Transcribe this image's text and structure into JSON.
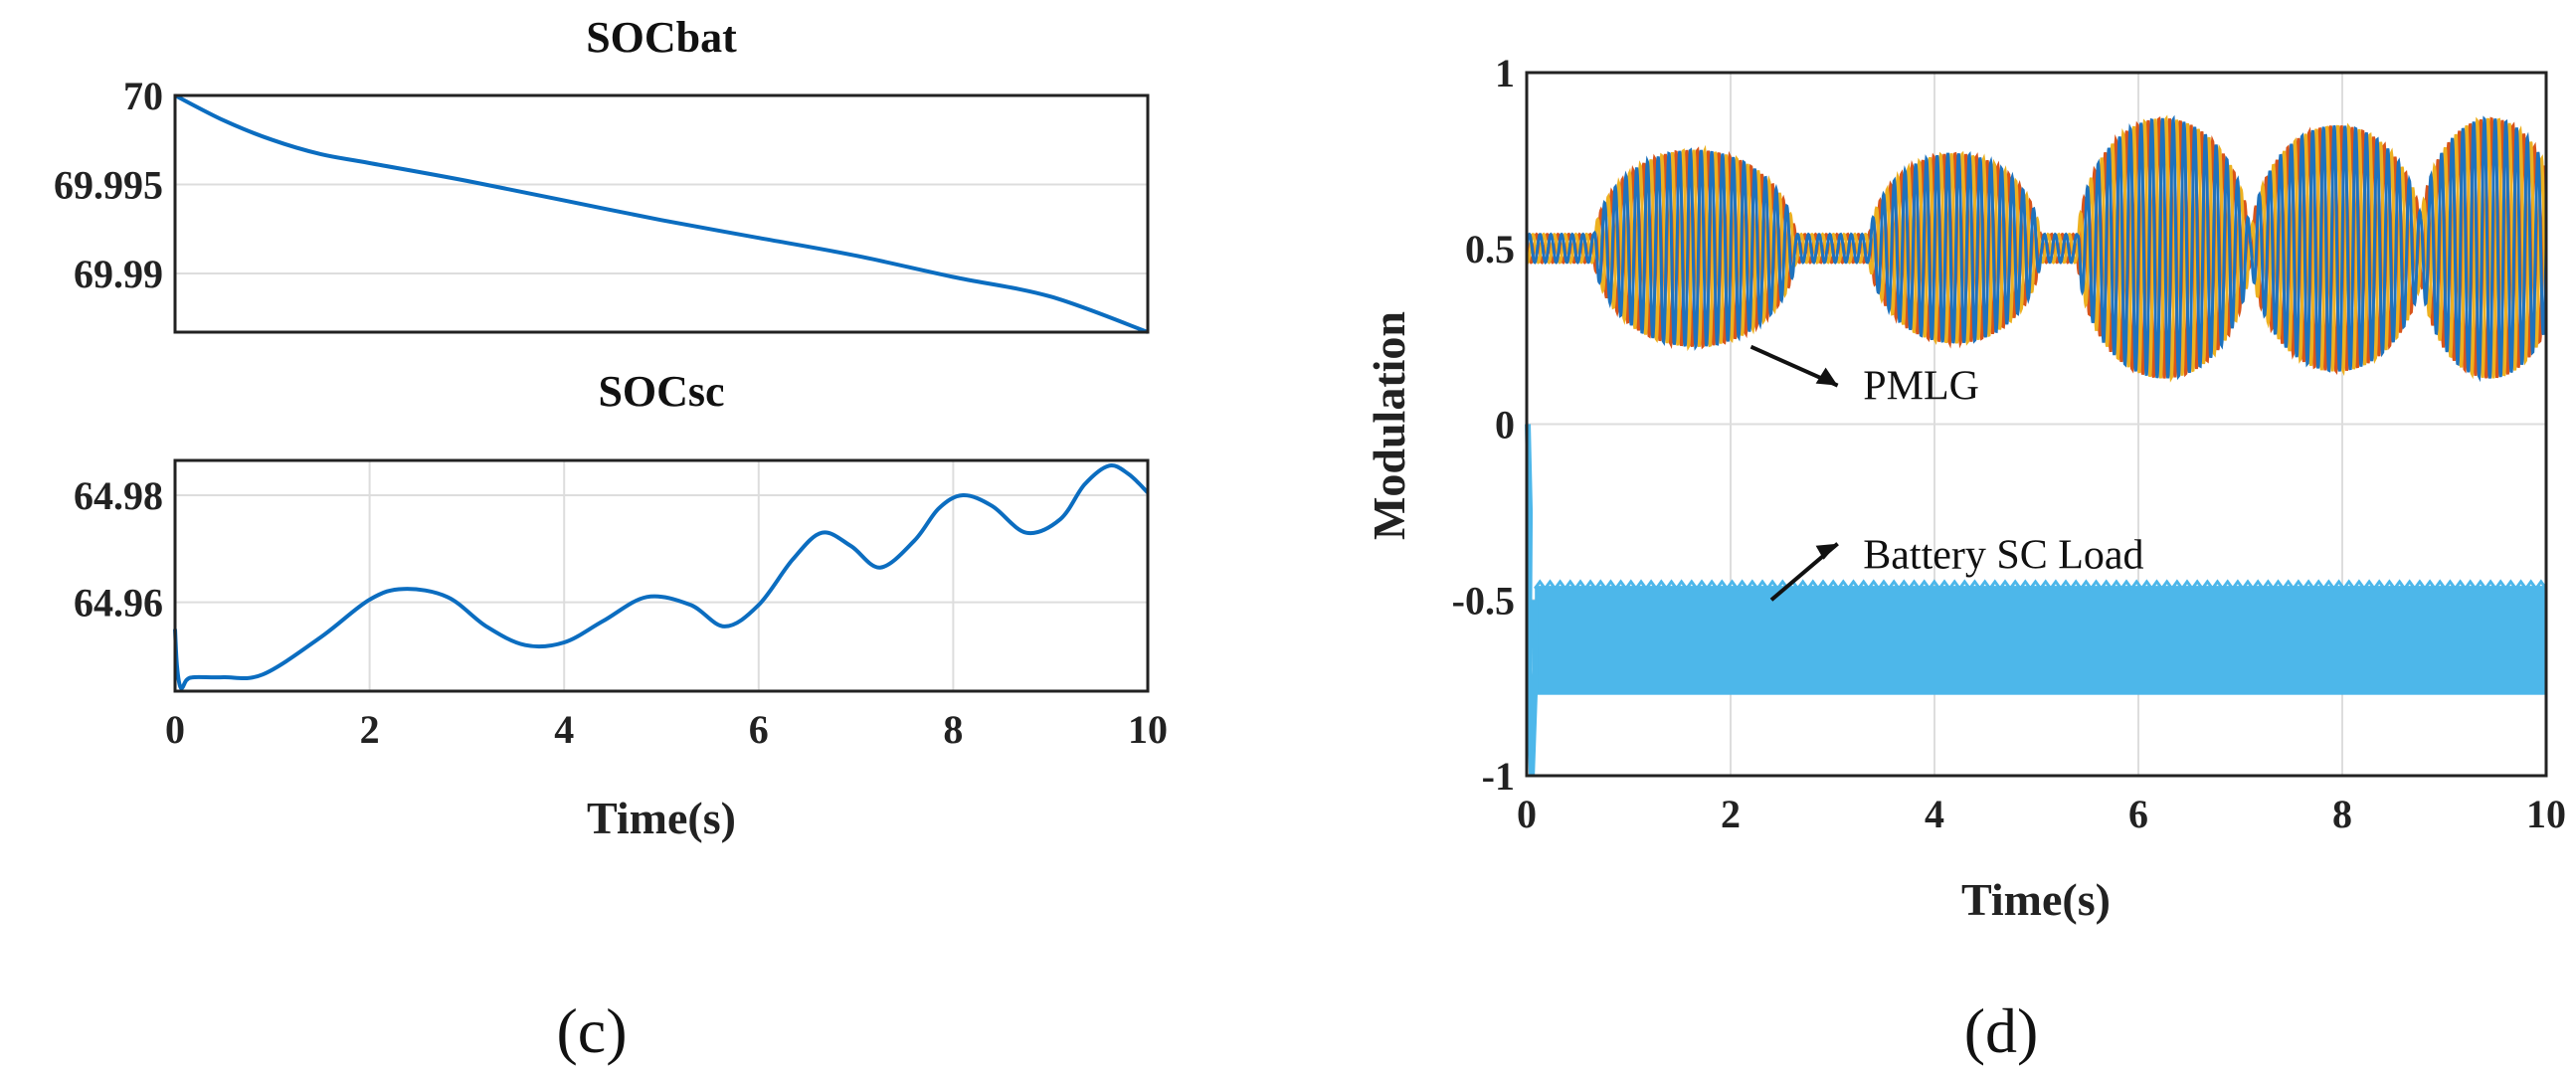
{
  "chart_data": [
    {
      "type": "line",
      "panel_label": "(c)",
      "title": "SOCbat",
      "xlabel": "",
      "ylabel": "",
      "xlim": [
        0,
        10
      ],
      "ylim": [
        69.9867,
        70
      ],
      "grid": true,
      "yticks": [
        "70",
        "69.995",
        "69.99"
      ],
      "ytick_values": [
        70,
        69.995,
        69.99
      ],
      "color": "#0b6dc0",
      "series": [
        {
          "name": "SOCbat",
          "x": [
            0,
            0.5,
            1,
            1.5,
            2,
            3,
            4,
            5,
            6,
            7,
            8,
            9,
            10
          ],
          "y": [
            70,
            69.9986,
            69.9975,
            69.9967,
            69.9962,
            69.9952,
            69.9941,
            69.993,
            69.992,
            69.991,
            69.9898,
            69.9887,
            69.9867
          ]
        }
      ]
    },
    {
      "type": "line",
      "panel_label": "(c)",
      "title": "SOCsc",
      "xlabel": "Time(s)",
      "ylabel": "",
      "xlim": [
        0,
        10
      ],
      "ylim": [
        64.9434,
        64.9865
      ],
      "grid": true,
      "xticks": [
        "0",
        "2",
        "4",
        "6",
        "8",
        "10"
      ],
      "xtick_values": [
        0,
        2,
        4,
        6,
        8,
        10
      ],
      "yticks": [
        "64.98",
        "64.96"
      ],
      "ytick_values": [
        64.98,
        64.96
      ],
      "color": "#0b6dc0",
      "series": [
        {
          "name": "SOCsc",
          "x": [
            0,
            0.02,
            0.06,
            0.12,
            0.2,
            0.5,
            0.9,
            1.5,
            2.0,
            2.35,
            2.8,
            3.2,
            3.6,
            4.0,
            4.4,
            4.85,
            5.3,
            5.65,
            6.0,
            6.35,
            6.65,
            6.95,
            7.25,
            7.6,
            7.85,
            8.1,
            8.4,
            8.75,
            9.1,
            9.35,
            9.6,
            9.8,
            10.0
          ],
          "y": [
            64.955,
            64.948,
            64.944,
            64.9455,
            64.946,
            64.946,
            64.9465,
            64.9535,
            64.9605,
            64.9625,
            64.961,
            64.9555,
            64.952,
            64.9525,
            64.9565,
            64.961,
            64.9595,
            64.9555,
            64.9595,
            64.968,
            64.973,
            64.9705,
            64.9665,
            64.9715,
            64.9775,
            64.98,
            64.978,
            64.973,
            64.9755,
            64.982,
            64.9855,
            64.984,
            64.9805
          ]
        }
      ]
    },
    {
      "type": "line",
      "panel_label": "(d)",
      "title": "",
      "xlabel": "Time(s)",
      "ylabel": "Modulation",
      "xlim": [
        0,
        10
      ],
      "ylim": [
        -1,
        1
      ],
      "grid": true,
      "xticks": [
        "0",
        "2",
        "4",
        "6",
        "8",
        "10"
      ],
      "xtick_values": [
        0,
        2,
        4,
        6,
        8,
        10
      ],
      "yticks": [
        "1",
        "0.5",
        "0",
        "-0.5",
        "-1"
      ],
      "ytick_values": [
        1,
        0.5,
        0,
        -0.5,
        -1
      ],
      "series": [
        {
          "name": "PMLG phase a",
          "color": "#1e72bd"
        },
        {
          "name": "PMLG phase b",
          "color": "#d9541a"
        },
        {
          "name": "PMLG phase c",
          "color": "#edb120"
        },
        {
          "name": "Battery SC Load",
          "color": "#4db7ea",
          "band_lower": -0.77,
          "band_upper": -0.46
        }
      ],
      "pmlg_bursts": [
        {
          "center": 1.65,
          "half_width": 1.0,
          "amplitude": 0.28
        },
        {
          "center": 4.2,
          "half_width": 0.85,
          "amplitude": 0.27
        },
        {
          "center": 6.25,
          "half_width": 0.85,
          "amplitude": 0.37
        },
        {
          "center": 7.95,
          "half_width": 0.85,
          "amplitude": 0.35
        },
        {
          "center": 9.45,
          "half_width": 0.7,
          "amplitude": 0.37
        }
      ],
      "pmlg_baseline": 0.5,
      "annotations": [
        {
          "text": "PMLG",
          "x": 3.3,
          "y": 0.11
        },
        {
          "text": "Battery SC Load",
          "x": 3.3,
          "y": -0.64
        }
      ]
    }
  ],
  "labels": {
    "c": "(c)",
    "d": "(d)"
  }
}
